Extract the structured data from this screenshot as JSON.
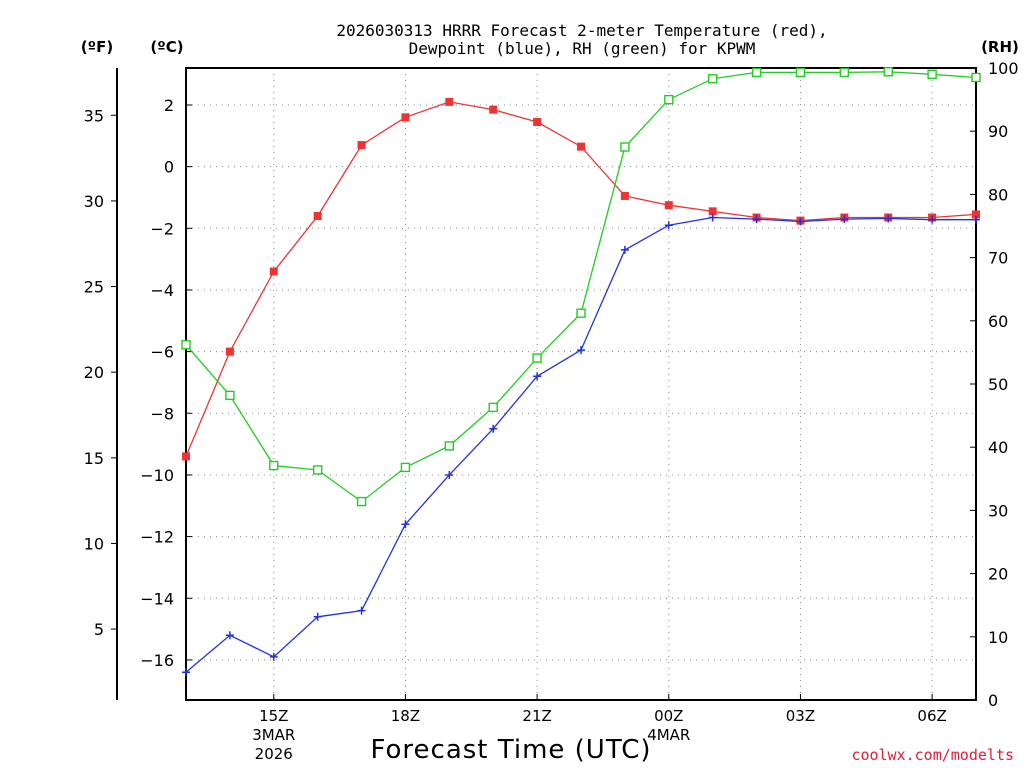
{
  "chart_data": {
    "type": "line",
    "title_line1": "2026030313 HRRR Forecast 2-meter Temperature (red),",
    "title_line2": "Dewpoint (blue), RH (green) for KPWM",
    "xlabel": "Forecast Time (UTC)",
    "credit": "coolwx.com/modelts",
    "units": {
      "fahrenheit": "(ºF)",
      "celsius": "(ºC)",
      "rh": "(RH)"
    },
    "x_hours": [
      0,
      1,
      2,
      3,
      4,
      5,
      6,
      7,
      8,
      9,
      10,
      11,
      12,
      13,
      14,
      15,
      16,
      17,
      18
    ],
    "x_range": [
      0,
      18
    ],
    "x_ticks": [
      {
        "hour": 2,
        "label": "15Z",
        "sub1": "3MAR",
        "sub2": "2026"
      },
      {
        "hour": 5,
        "label": "18Z",
        "sub1": "",
        "sub2": ""
      },
      {
        "hour": 8,
        "label": "21Z",
        "sub1": "",
        "sub2": ""
      },
      {
        "hour": 11,
        "label": "00Z",
        "sub1": "4MAR",
        "sub2": ""
      },
      {
        "hour": 14,
        "label": "03Z",
        "sub1": "",
        "sub2": ""
      },
      {
        "hour": 17,
        "label": "06Z",
        "sub1": "",
        "sub2": ""
      }
    ],
    "celsius_range": [
      -17.3,
      3.2
    ],
    "celsius_ticks": [
      "2",
      "0",
      "−2",
      "−4",
      "−6",
      "−8",
      "−10",
      "−12",
      "−14",
      "−16"
    ],
    "celsius_tick_values": [
      2,
      0,
      -2,
      -4,
      -6,
      -8,
      -10,
      -12,
      -14,
      -16
    ],
    "fahrenheit_ticks": [
      "35",
      "30",
      "25",
      "20",
      "15",
      "10",
      "5"
    ],
    "fahrenheit_tick_values": [
      35,
      30,
      25,
      20,
      15,
      10,
      5
    ],
    "rh_range": [
      0,
      100
    ],
    "rh_ticks": [
      "100",
      "90",
      "80",
      "70",
      "60",
      "50",
      "40",
      "30",
      "20",
      "10",
      "0"
    ],
    "rh_tick_values": [
      100,
      90,
      80,
      70,
      60,
      50,
      40,
      30,
      20,
      10,
      0
    ],
    "series": [
      {
        "name": "Temperature",
        "unit": "C",
        "color": "#ee3333",
        "marker": "filled-square",
        "values": [
          -9.4,
          -6.0,
          -3.4,
          -1.6,
          0.7,
          1.6,
          2.1,
          1.85,
          1.45,
          0.65,
          -0.95,
          -1.25,
          -1.45,
          -1.65,
          -1.75,
          -1.65,
          -1.65,
          -1.65,
          -1.55
        ]
      },
      {
        "name": "Dewpoint",
        "unit": "C",
        "color": "#2233dd",
        "marker": "plus",
        "values": [
          -16.4,
          -15.2,
          -15.9,
          -14.6,
          -14.4,
          -11.6,
          -10.0,
          -8.5,
          -6.8,
          -5.95,
          -2.7,
          -1.9,
          -1.65,
          -1.7,
          -1.78,
          -1.7,
          -1.68,
          -1.72,
          -1.72
        ]
      },
      {
        "name": "RH",
        "unit": "%",
        "color": "#22cc22",
        "marker": "open-square",
        "values": [
          56.2,
          48.2,
          37.1,
          36.4,
          31.4,
          36.8,
          40.2,
          46.3,
          54.1,
          61.2,
          87.5,
          95.0,
          98.3,
          99.3,
          99.3,
          99.3,
          99.4,
          99.0,
          98.5
        ]
      }
    ]
  }
}
